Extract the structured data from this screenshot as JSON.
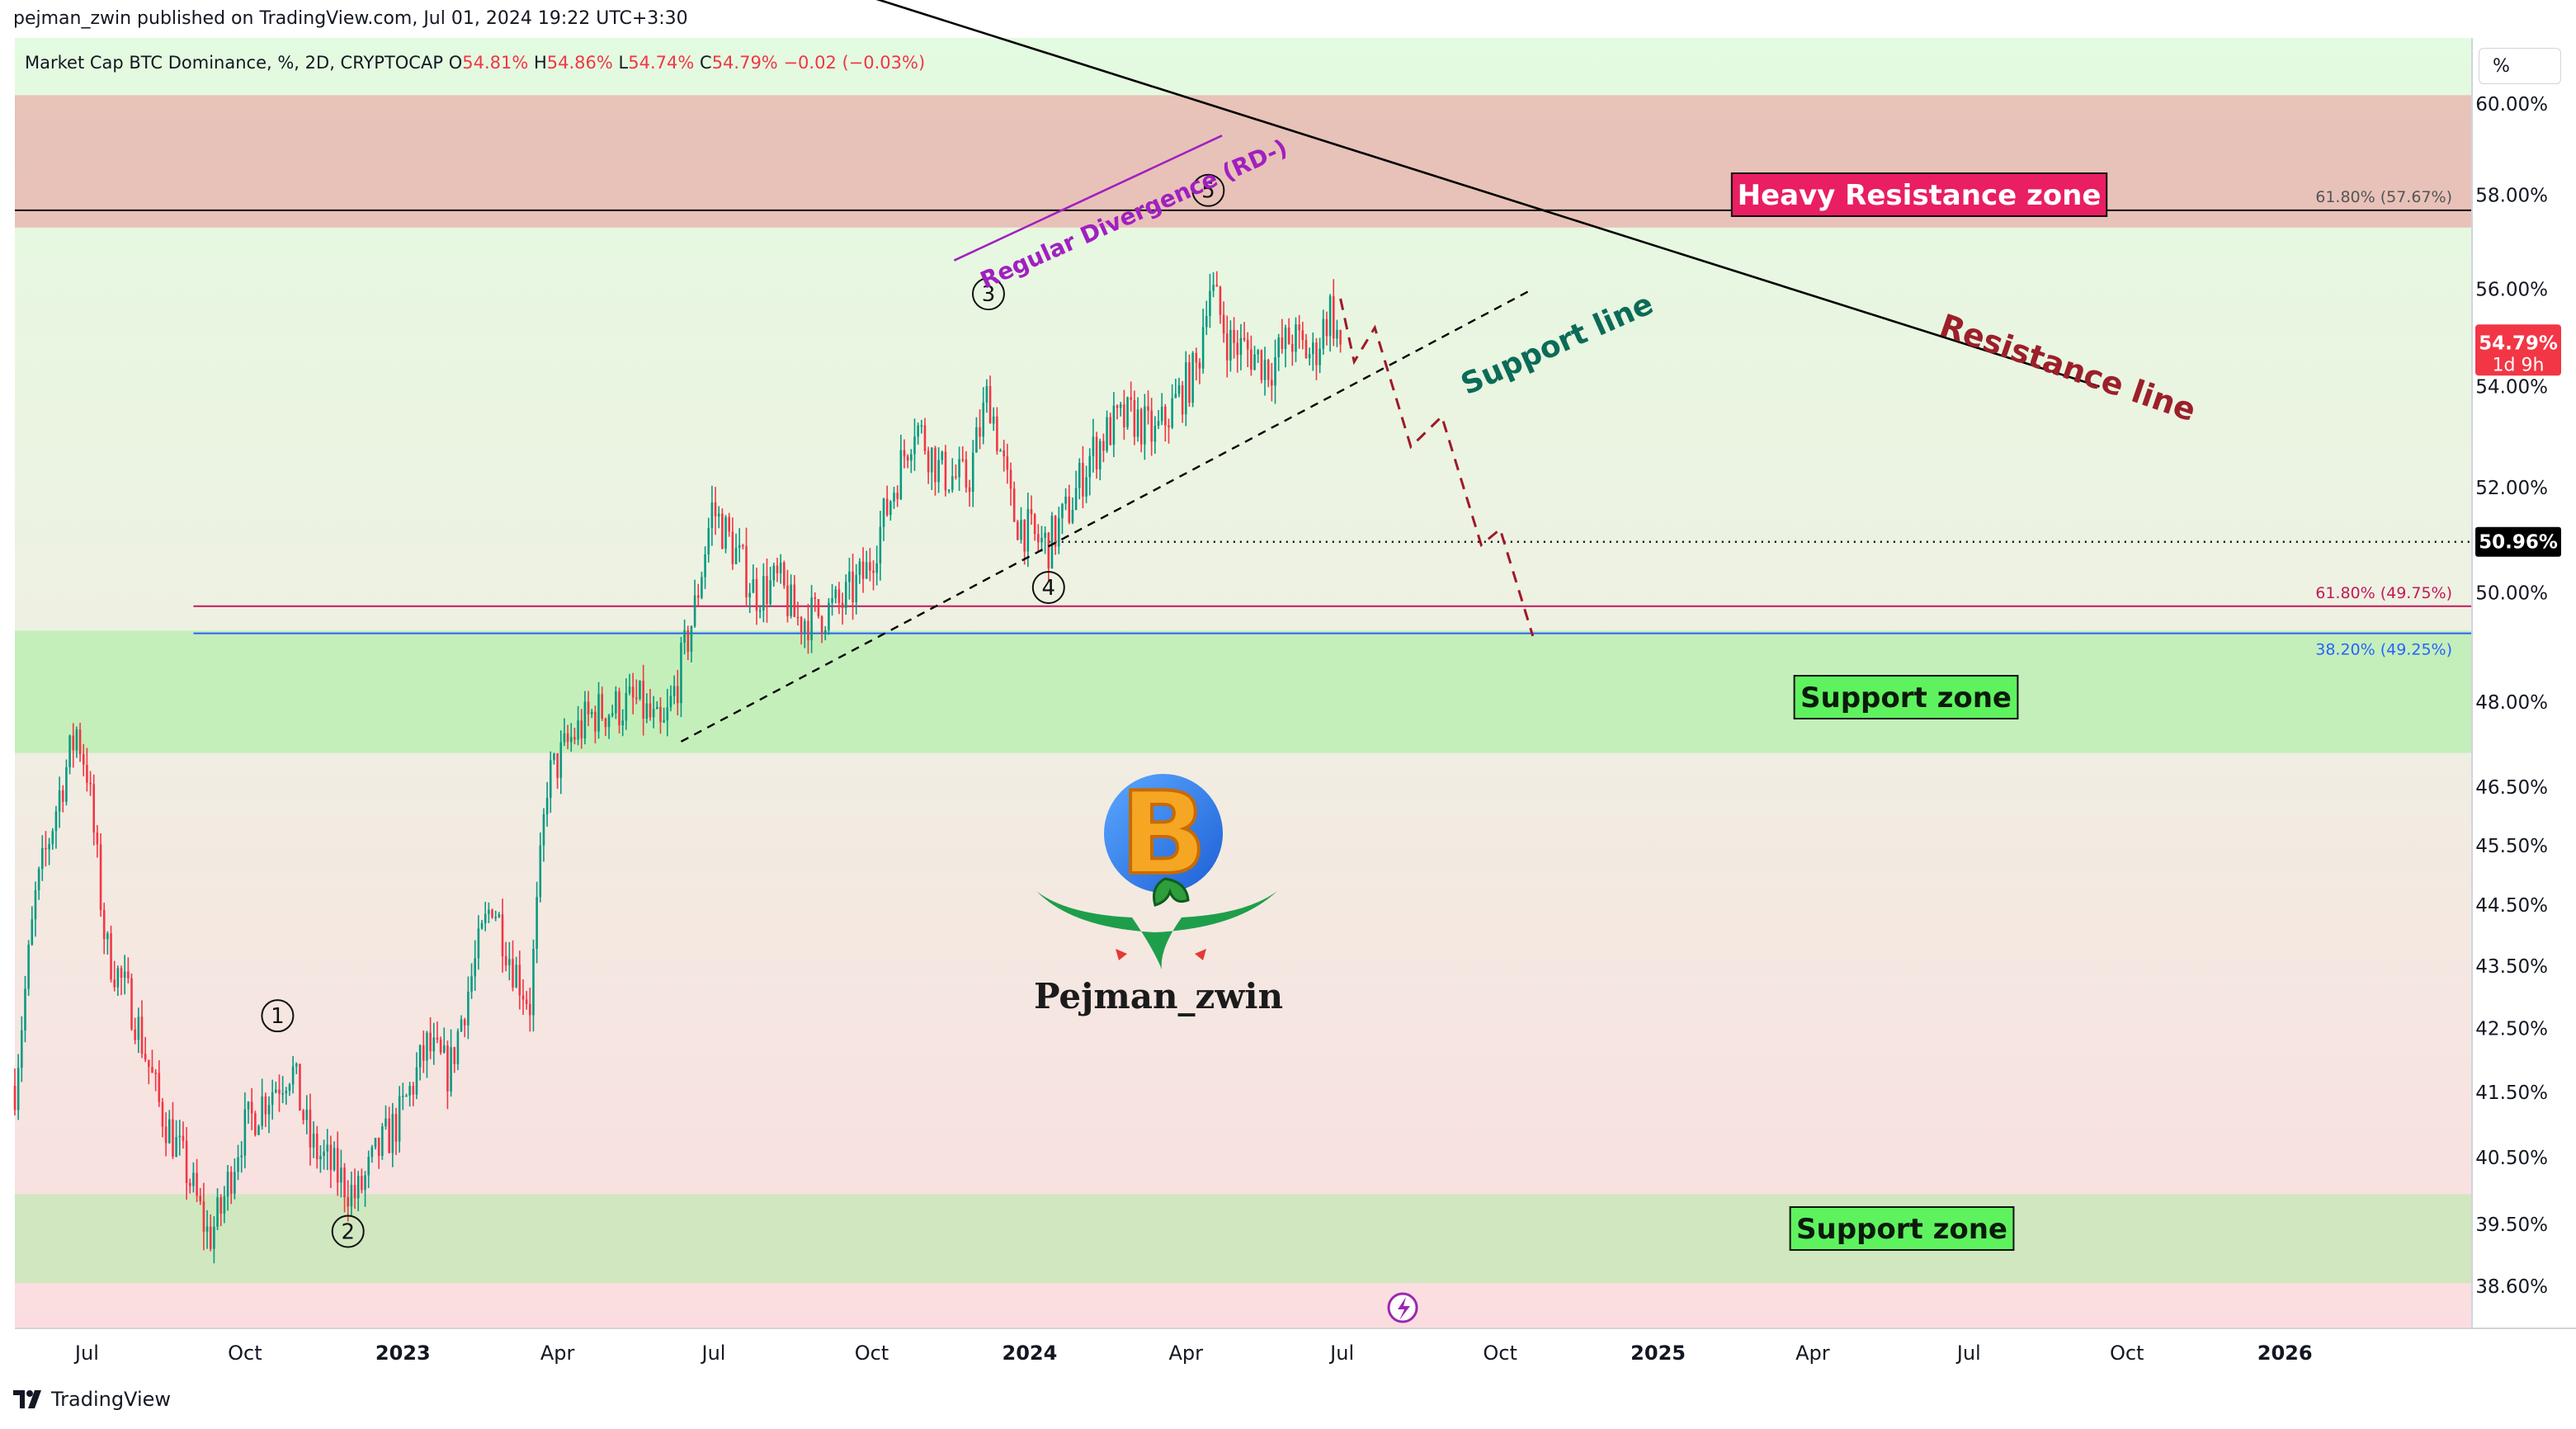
{
  "header": {
    "published_by": "pejman_zwin published on TradingView.com, Jul 01, 2024 19:22 UTC+3:30"
  },
  "symbol_line": {
    "title": "Market Cap BTC Dominance, %, 2D, CRYPTOCAP",
    "open_label": "O",
    "open_value": "54.81%",
    "high_label": "H",
    "high_value": "54.86%",
    "low_label": "L",
    "low_value": "54.74%",
    "close_label": "C",
    "close_value": "54.79%",
    "change": "−0.02 (−0.03%)"
  },
  "price_scale": {
    "unit_button": "%",
    "ticks": [
      "60.00%",
      "58.00%",
      "56.00%",
      "54.00%",
      "52.00%",
      "50.00%",
      "48.00%",
      "46.50%",
      "45.50%",
      "44.50%",
      "43.50%",
      "42.50%",
      "41.50%",
      "40.50%",
      "39.50%",
      "38.60%"
    ],
    "current_price_label": "54.79%",
    "countdown": "1d 9h",
    "marked_level_label": "50.96%"
  },
  "time_scale": {
    "ticks": [
      "Jul",
      "Oct",
      "2023",
      "Apr",
      "Jul",
      "Oct",
      "2024",
      "Apr",
      "Jul",
      "Oct",
      "2025",
      "Apr",
      "Jul",
      "Oct",
      "2026"
    ]
  },
  "annotations": {
    "heavy_resistance_zone": "Heavy Resistance zone",
    "support_zone_upper": "Support zone",
    "support_zone_lower": "Support zone",
    "resistance_line": "Resistance line",
    "support_line": "Support line",
    "regular_divergence": "Regular Divergence (RD-)",
    "fib_top": "61.80% (57.67%)",
    "fib_mid": "61.80% (49.75%)",
    "fib_low": "38.20% (49.25%)",
    "wave_labels": [
      "1",
      "2",
      "3",
      "4",
      "5"
    ],
    "watermark_name": "Pejman_zwin"
  },
  "footer": {
    "brand": "TradingView"
  },
  "colors": {
    "up_candle": "#089981",
    "down_candle": "#f23645",
    "heavy_resistance_fill": "#e8b9b0",
    "support_fill": "#b9efb0",
    "support_line_text": "#0b6b58",
    "resistance_line_text": "#9c1f2a",
    "divergence": "#a020c0",
    "fib_red": "#c2185b",
    "fib_blue": "#2962ff",
    "heavy_label_bg": "#e91e63"
  },
  "chart_data": {
    "type": "candlestick",
    "title": "Market Cap BTC Dominance, %, 2D, CRYPTOCAP",
    "x_range": [
      "2022-05-20",
      "2026-04-20"
    ],
    "y_range": [
      38.0,
      61.5
    ],
    "y_scale": "log",
    "candle_interval_days": 2,
    "grid": false,
    "close_path_anchors": [
      [
        "2022-05-20",
        41.6
      ],
      [
        "2022-06-01",
        44.6
      ],
      [
        "2022-06-15",
        46.4
      ],
      [
        "2022-06-25",
        47.5
      ],
      [
        "2022-07-01",
        46.8
      ],
      [
        "2022-07-12",
        43.8
      ],
      [
        "2022-07-28",
        42.8
      ],
      [
        "2022-08-12",
        41.3
      ],
      [
        "2022-08-28",
        40.3
      ],
      [
        "2022-09-10",
        39.3
      ],
      [
        "2022-09-17",
        39.7
      ],
      [
        "2022-09-28",
        40.8
      ],
      [
        "2022-10-12",
        41.4
      ],
      [
        "2022-10-28",
        41.9
      ],
      [
        "2022-11-08",
        40.7
      ],
      [
        "2022-11-22",
        40.3
      ],
      [
        "2022-12-05",
        39.9
      ],
      [
        "2022-12-18",
        40.6
      ],
      [
        "2022-12-30",
        41.1
      ],
      [
        "2023-01-15",
        42.2
      ],
      [
        "2023-01-28",
        41.8
      ],
      [
        "2023-02-06",
        42.9
      ],
      [
        "2023-02-22",
        44.6
      ],
      [
        "2023-03-05",
        43.6
      ],
      [
        "2023-03-16",
        42.9
      ],
      [
        "2023-03-26",
        46.6
      ],
      [
        "2023-04-10",
        47.4
      ],
      [
        "2023-04-22",
        47.8
      ],
      [
        "2023-05-05",
        47.9
      ],
      [
        "2023-05-18",
        48.0
      ],
      [
        "2023-06-01",
        47.4
      ],
      [
        "2023-06-10",
        48.4
      ],
      [
        "2023-06-20",
        49.7
      ],
      [
        "2023-06-30",
        51.6
      ],
      [
        "2023-07-10",
        51.0
      ],
      [
        "2023-07-25",
        50.0
      ],
      [
        "2023-08-08",
        50.2
      ],
      [
        "2023-08-18",
        49.5
      ],
      [
        "2023-09-01",
        49.6
      ],
      [
        "2023-09-14",
        49.8
      ],
      [
        "2023-09-28",
        50.4
      ],
      [
        "2023-10-10",
        51.6
      ],
      [
        "2023-10-26",
        53.3
      ],
      [
        "2023-11-10",
        52.3
      ],
      [
        "2023-11-26",
        52.1
      ],
      [
        "2023-12-08",
        53.9
      ],
      [
        "2023-12-22",
        51.5
      ],
      [
        "2024-01-04",
        51.0
      ],
      [
        "2024-01-12",
        50.9
      ],
      [
        "2024-01-24",
        51.6
      ],
      [
        "2024-02-05",
        52.6
      ],
      [
        "2024-02-18",
        53.2
      ],
      [
        "2024-03-01",
        53.4
      ],
      [
        "2024-03-14",
        53.0
      ],
      [
        "2024-03-28",
        53.8
      ],
      [
        "2024-04-08",
        54.4
      ],
      [
        "2024-04-14",
        56.2
      ],
      [
        "2024-04-26",
        54.9
      ],
      [
        "2024-05-08",
        54.7
      ],
      [
        "2024-05-20",
        54.4
      ],
      [
        "2024-06-01",
        55.0
      ],
      [
        "2024-06-14",
        54.6
      ],
      [
        "2024-06-24",
        55.6
      ],
      [
        "2024-06-30",
        54.79
      ]
    ],
    "price_levels": [
      {
        "label": "61.80% (57.67%)",
        "value": 57.67
      },
      {
        "label": "61.80% (49.75%)",
        "value": 49.75
      },
      {
        "label": "38.20% (49.25%)",
        "value": 49.25
      },
      {
        "label": "50.96%",
        "value": 50.96
      }
    ],
    "zones": [
      {
        "label": "Heavy Resistance zone",
        "from": 57.3,
        "to": 60.2
      },
      {
        "label": "Support zone",
        "from": 47.1,
        "to": 49.3
      },
      {
        "label": "Support zone",
        "from": 38.65,
        "to": 39.95
      }
    ],
    "trend_lines": [
      {
        "label": "Resistance line",
        "from": [
          "2023-06-01",
          64.0
        ],
        "to": [
          "2025-09-15",
          54.0
        ]
      },
      {
        "label": "Support line",
        "from": [
          "2023-06-12",
          47.3
        ],
        "to": [
          "2024-10-20",
          56.0
        ]
      }
    ],
    "projected_path": [
      [
        "2024-06-30",
        55.8
      ],
      [
        "2024-07-08",
        54.5
      ],
      [
        "2024-07-20",
        55.2
      ],
      [
        "2024-08-10",
        52.8
      ],
      [
        "2024-08-28",
        53.4
      ],
      [
        "2024-09-20",
        50.9
      ],
      [
        "2024-10-01",
        51.2
      ],
      [
        "2024-10-20",
        49.2
      ]
    ],
    "wave_points": [
      {
        "label": "1",
        "date": "2022-10-20",
        "value": 42.7
      },
      {
        "label": "2",
        "date": "2022-11-30",
        "value": 39.4
      },
      {
        "label": "3",
        "date": "2023-12-08",
        "value": 55.9
      },
      {
        "label": "4",
        "date": "2024-01-12",
        "value": 50.1
      },
      {
        "label": "5",
        "date": "2024-04-14",
        "value": 58.1
      }
    ],
    "current": {
      "value": 54.79,
      "countdown": "1d 9h"
    }
  }
}
